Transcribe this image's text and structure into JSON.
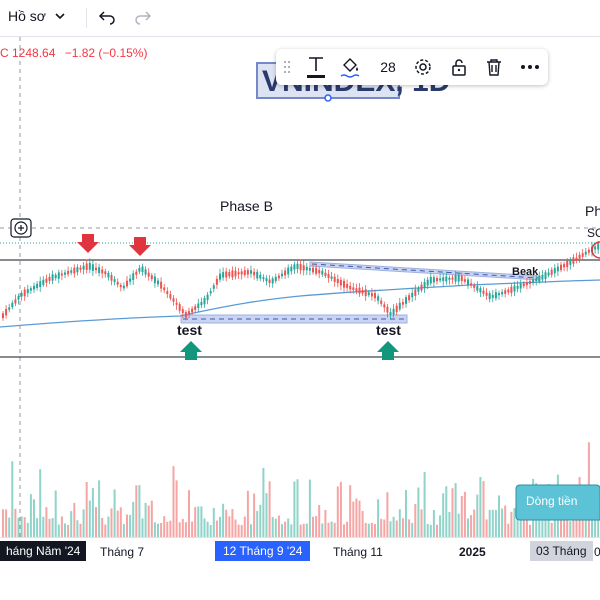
{
  "topbar": {
    "profile_label": "Hồ sơ",
    "profile_chevron": "chevron-down-icon",
    "undo_icon": "undo-icon",
    "redo_icon": "redo-icon"
  },
  "price": {
    "close": "C 1248.64",
    "change": "−1.82 (−0.15%)"
  },
  "watermark": "VNINDEX, 1D",
  "toolbar": {
    "text_icon": "text-icon",
    "fill_icon": "paint-bucket-icon",
    "font_size": "28",
    "settings_icon": "gear-icon",
    "lock_icon": "lock-icon",
    "delete_icon": "trash-icon",
    "more_icon": "more-icon"
  },
  "annotations": {
    "phase_b": "Phase B",
    "phase_c": "Ph",
    "soc": "SO",
    "test_left": "test",
    "test_right": "test",
    "beak": "Beak",
    "dong_tien": "Dòng tiền"
  },
  "time_axis": {
    "labels": [
      "háng Năm '24",
      "Tháng 7",
      "12 Tháng 9 '24",
      "Tháng 11",
      "2025",
      "03 Tháng",
      "0"
    ]
  },
  "colors": {
    "up": "#26a69a",
    "down": "#ef5350",
    "ma": "#5b9bd5",
    "box": "#a7b8e6",
    "callout": "#5cc3d6",
    "marker_down": "#e0353f",
    "marker_up": "#12977c"
  }
}
